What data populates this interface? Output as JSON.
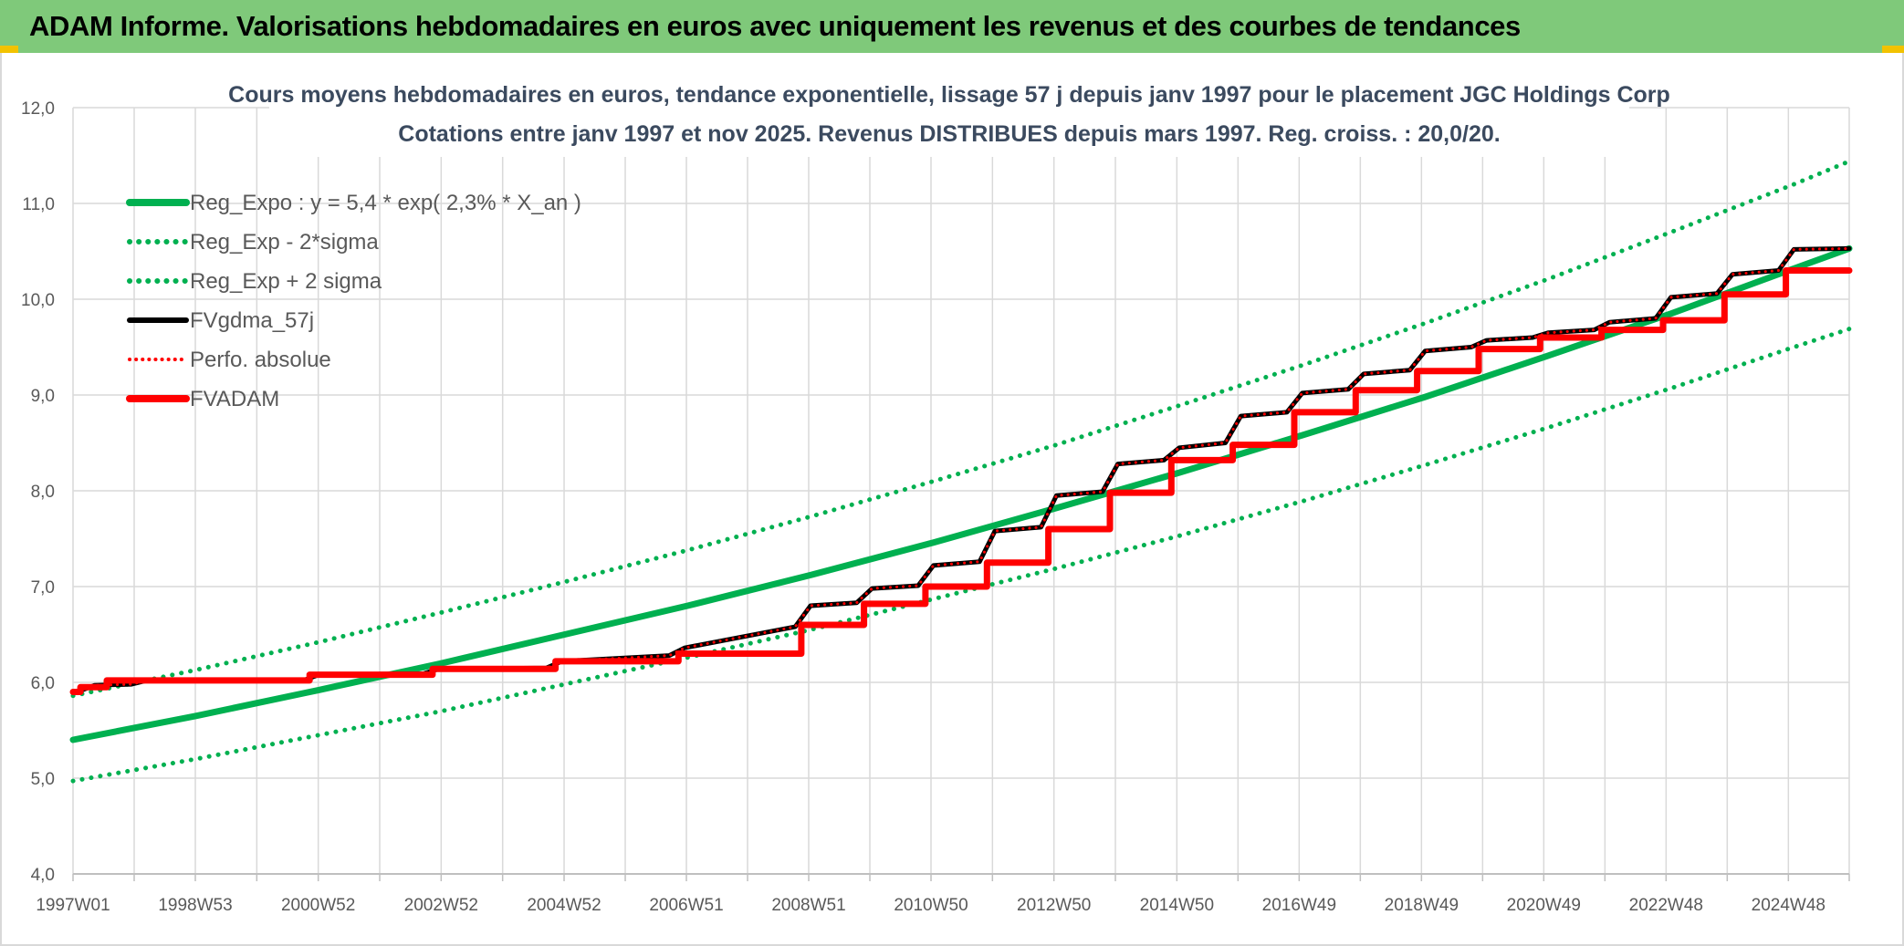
{
  "banner": {
    "title": "ADAM Informe. Valorisations hebdomadaires en euros avec uniquement les revenus et des courbes de tendances"
  },
  "chart_data": {
    "type": "line",
    "title": "Cours moyens hebdomadaires en euros, tendance exponentielle, lissage 57 j depuis janv 1997 pour le placement JGC Holdings Corp",
    "subtitle": "Cotations entre janv 1997 et nov 2025. Revenus DISTRIBUES depuis mars 1997. Reg. croiss. : 20,0/20.",
    "xlabel": "",
    "ylabel": "",
    "ylim": [
      4.0,
      12.0
    ],
    "yticks": [
      "4,0",
      "5,0",
      "6,0",
      "7,0",
      "8,0",
      "9,0",
      "10,0",
      "11,0",
      "12,0"
    ],
    "xlim": [
      1997.0,
      2025.9
    ],
    "xticks": [
      {
        "label": "1997W01",
        "x": 1997.0
      },
      {
        "label": "1998W53",
        "x": 1998.99
      },
      {
        "label": "2000W52",
        "x": 2000.99
      },
      {
        "label": "2002W52",
        "x": 2002.99
      },
      {
        "label": "2004W52",
        "x": 2004.99
      },
      {
        "label": "2006W51",
        "x": 2006.98
      },
      {
        "label": "2008W51",
        "x": 2008.97
      },
      {
        "label": "2010W50",
        "x": 2010.96
      },
      {
        "label": "2012W50",
        "x": 2012.96
      },
      {
        "label": "2014W50",
        "x": 2014.96
      },
      {
        "label": "2016W49",
        "x": 2016.95
      },
      {
        "label": "2018W49",
        "x": 2018.94
      },
      {
        "label": "2020W49",
        "x": 2020.93
      },
      {
        "label": "2022W48",
        "x": 2022.92
      },
      {
        "label": "2024W48",
        "x": 2024.91
      }
    ],
    "grid": true,
    "legend_position": "top-left",
    "series": [
      {
        "name": "Reg_Expo : y = 5,4 * exp( 2,3% *  X_an )",
        "color": "#00b050",
        "style": "solid",
        "x": [
          1997,
          1999,
          2001,
          2003,
          2005,
          2007,
          2009,
          2011,
          2013,
          2015,
          2017,
          2019,
          2021,
          2023,
          2025,
          2025.9
        ],
        "values": [
          5.4,
          5.65,
          5.92,
          6.2,
          6.5,
          6.8,
          7.12,
          7.46,
          7.82,
          8.19,
          8.58,
          8.98,
          9.41,
          9.85,
          10.32,
          10.53
        ]
      },
      {
        "name": "Reg_Exp - 2*sigma",
        "color": "#00b050",
        "style": "dotted",
        "x": [
          1997,
          1999,
          2001,
          2003,
          2005,
          2007,
          2009,
          2011,
          2013,
          2015,
          2017,
          2019,
          2021,
          2023,
          2025,
          2025.9
        ],
        "values": [
          4.97,
          5.2,
          5.45,
          5.7,
          5.98,
          6.26,
          6.55,
          6.87,
          7.19,
          7.53,
          7.89,
          8.27,
          8.66,
          9.07,
          9.5,
          9.69
        ]
      },
      {
        "name": "Reg_Exp + 2 sigma",
        "color": "#00b050",
        "style": "dotted",
        "x": [
          1997,
          1999,
          2001,
          2003,
          2005,
          2007,
          2009,
          2011,
          2013,
          2015,
          2017,
          2019,
          2021,
          2023,
          2025,
          2025.9
        ],
        "values": [
          5.86,
          6.13,
          6.42,
          6.73,
          7.05,
          7.38,
          7.73,
          8.1,
          8.48,
          8.89,
          9.31,
          9.75,
          10.21,
          10.7,
          11.2,
          11.44
        ]
      },
      {
        "name": "FVgdma_57j",
        "color": "#000000",
        "style": "solid",
        "x": [
          1997.0,
          1997.15,
          1997.35,
          1997.95,
          1998.2,
          2000.75,
          2001.0,
          2002.7,
          2002.95,
          2004.7,
          2004.95,
          2006.7,
          2006.95,
          2008.75,
          2009.0,
          2009.75,
          2010.0,
          2010.75,
          2011.0,
          2011.75,
          2012.0,
          2012.75,
          2013.0,
          2013.75,
          2014.0,
          2014.75,
          2015.0,
          2015.75,
          2016.0,
          2016.75,
          2017.0,
          2017.75,
          2018.0,
          2018.75,
          2019.0,
          2019.75,
          2020.0,
          2020.75,
          2021.0,
          2021.75,
          2022.0,
          2022.75,
          2023.0,
          2023.75,
          2024.0,
          2024.75,
          2025.0,
          2025.9
        ],
        "values": [
          5.9,
          5.92,
          5.97,
          5.98,
          6.02,
          6.02,
          6.08,
          6.09,
          6.14,
          6.15,
          6.22,
          6.28,
          6.36,
          6.58,
          6.8,
          6.83,
          6.98,
          7.01,
          7.22,
          7.26,
          7.58,
          7.62,
          7.95,
          7.99,
          8.28,
          8.32,
          8.45,
          8.5,
          8.78,
          8.82,
          9.02,
          9.06,
          9.22,
          9.26,
          9.46,
          9.5,
          9.57,
          9.6,
          9.65,
          9.68,
          9.76,
          9.8,
          10.02,
          10.06,
          10.26,
          10.3,
          10.52,
          10.53
        ]
      },
      {
        "name": "Perfo. absolue",
        "color": "#ff0000",
        "style": "dotted",
        "x": [
          1997.0,
          1997.15,
          1997.35,
          1997.95,
          1998.2,
          2000.75,
          2001.0,
          2002.7,
          2002.95,
          2004.7,
          2004.95,
          2006.7,
          2006.95,
          2008.75,
          2009.0,
          2009.75,
          2010.0,
          2010.75,
          2011.0,
          2011.75,
          2012.0,
          2012.75,
          2013.0,
          2013.75,
          2014.0,
          2014.75,
          2015.0,
          2015.75,
          2016.0,
          2016.75,
          2017.0,
          2017.75,
          2018.0,
          2018.75,
          2019.0,
          2019.75,
          2020.0,
          2020.75,
          2021.0,
          2021.75,
          2022.0,
          2022.75,
          2023.0,
          2023.75,
          2024.0,
          2024.75,
          2025.0,
          2025.9
        ],
        "values": [
          5.9,
          5.92,
          5.97,
          5.98,
          6.02,
          6.02,
          6.08,
          6.09,
          6.14,
          6.15,
          6.22,
          6.28,
          6.36,
          6.58,
          6.8,
          6.83,
          6.98,
          7.01,
          7.22,
          7.26,
          7.58,
          7.62,
          7.95,
          7.99,
          8.28,
          8.32,
          8.45,
          8.5,
          8.78,
          8.82,
          9.02,
          9.06,
          9.22,
          9.26,
          9.46,
          9.5,
          9.57,
          9.6,
          9.65,
          9.68,
          9.76,
          9.8,
          10.02,
          10.06,
          10.26,
          10.3,
          10.52,
          10.53
        ]
      },
      {
        "name": "FVADAM",
        "color": "#ff0000",
        "style": "solid-step",
        "x": [
          1997.0,
          1997.12,
          1997.12,
          1997.55,
          1997.55,
          2000.85,
          2000.85,
          2002.85,
          2002.85,
          2004.85,
          2004.85,
          2006.85,
          2006.85,
          2008.85,
          2008.85,
          2009.87,
          2009.87,
          2010.87,
          2010.87,
          2011.87,
          2011.87,
          2012.87,
          2012.87,
          2013.87,
          2013.87,
          2014.87,
          2014.87,
          2015.87,
          2015.87,
          2016.87,
          2016.87,
          2017.87,
          2017.87,
          2018.87,
          2018.87,
          2019.87,
          2019.87,
          2020.87,
          2020.87,
          2021.87,
          2021.87,
          2022.87,
          2022.87,
          2023.87,
          2023.87,
          2024.87,
          2024.87,
          2025.9
        ],
        "values": [
          5.9,
          5.9,
          5.95,
          5.95,
          6.02,
          6.02,
          6.08,
          6.08,
          6.14,
          6.14,
          6.22,
          6.22,
          6.3,
          6.3,
          6.6,
          6.6,
          6.82,
          6.82,
          7.0,
          7.0,
          7.25,
          7.25,
          7.6,
          7.6,
          7.98,
          7.98,
          8.32,
          8.32,
          8.48,
          8.48,
          8.82,
          8.82,
          9.05,
          9.05,
          9.25,
          9.25,
          9.48,
          9.48,
          9.6,
          9.6,
          9.68,
          9.68,
          9.78,
          9.78,
          10.05,
          10.05,
          10.3,
          10.3
        ]
      }
    ]
  }
}
